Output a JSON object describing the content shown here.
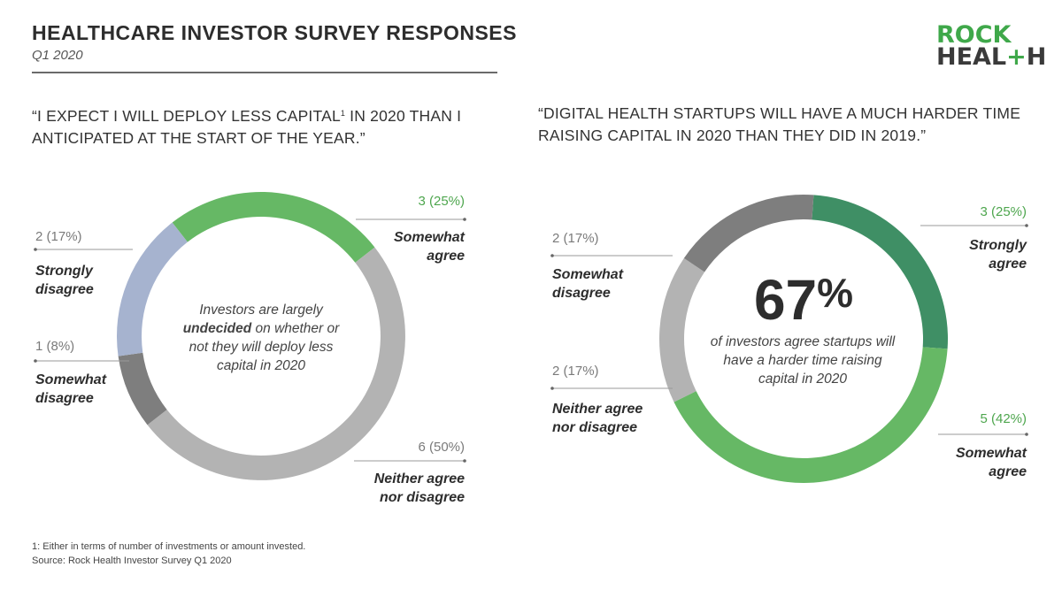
{
  "header": {
    "title": "HEALTHCARE INVESTOR SURVEY RESPONSES",
    "subtitle": "Q1 2020"
  },
  "logo": {
    "line1": "ROCK",
    "line2_a": "HEAL",
    "line2_plus": "+",
    "line2_b": "H"
  },
  "colors": {
    "strongly_agree": "#3f8f65",
    "somewhat_agree": "#66b865",
    "neither": "#b3b3b3",
    "somewhat_disagree": "#7e7e7e",
    "strongly_disagree": "#a6b3cf",
    "value_green": "#4ea64e",
    "value_gray": "#7a7a7a"
  },
  "chart_data": [
    {
      "type": "donut",
      "title_pre": "“I EXPECT I WILL DEPLOY LESS CAPITAL",
      "title_sup": "1",
      "title_post": " IN 2020 THAN I ANTICIPATED AT THE START OF THE YEAR.”",
      "center_text_pre": "Investors are largely",
      "center_text_bold": "undecided",
      "center_text_post": "on whether or not they will deploy less capital in 2020",
      "slices": [
        {
          "key": "somewhat_agree",
          "label": "Somewhat agree",
          "count": 3,
          "percent": 25,
          "value_label": "3 (25%)"
        },
        {
          "key": "neither",
          "label": "Neither agree nor disagree",
          "count": 6,
          "percent": 50,
          "value_label": "6 (50%)"
        },
        {
          "key": "somewhat_disagree",
          "label": "Somewhat disagree",
          "count": 1,
          "percent": 8,
          "value_label": "1 (8%)"
        },
        {
          "key": "strongly_disagree",
          "label": "Strongly disagree",
          "count": 2,
          "percent": 17,
          "value_label": "2 (17%)"
        }
      ]
    },
    {
      "type": "donut",
      "title": "“DIGITAL HEALTH STARTUPS WILL HAVE A MUCH HARDER TIME RAISING CAPITAL IN 2020 THAN THEY DID IN 2019.”",
      "center_big": "67",
      "center_big_unit": "%",
      "center_text": "of investors agree startups will have a harder time raising capital in 2020",
      "slices": [
        {
          "key": "strongly_agree",
          "label": "Strongly agree",
          "count": 3,
          "percent": 25,
          "value_label": "3 (25%)"
        },
        {
          "key": "somewhat_agree",
          "label": "Somewhat agree",
          "count": 5,
          "percent": 42,
          "value_label": "5 (42%)"
        },
        {
          "key": "neither",
          "label": "Neither agree nor disagree",
          "count": 2,
          "percent": 17,
          "value_label": "2 (17%)"
        },
        {
          "key": "somewhat_disagree",
          "label": "Somewhat disagree",
          "count": 2,
          "percent": 17,
          "value_label": "2 (17%)"
        }
      ]
    }
  ],
  "footnotes": {
    "note1": "1: Either in terms of number of investments or amount invested.",
    "source": "Source: Rock Health Investor Survey Q1 2020"
  }
}
